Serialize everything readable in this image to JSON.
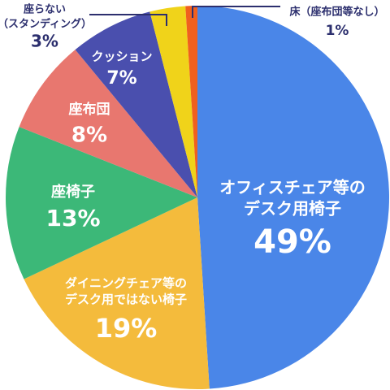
{
  "chart_data": {
    "type": "pie",
    "categories": [
      [
        "オフィスチェア等の",
        "デスク用椅子"
      ],
      [
        "ダイニングチェア等の",
        "デスク用ではない椅子"
      ],
      [
        "座椅子"
      ],
      [
        "座布団"
      ],
      [
        "クッション"
      ],
      [
        "座らない",
        "（スタンディング）"
      ],
      [
        "床（座布団等なし）"
      ]
    ],
    "values": [
      49,
      19,
      13,
      8,
      7,
      3,
      1
    ],
    "value_labels": [
      "49%",
      "19%",
      "13%",
      "8%",
      "7%",
      "3%",
      "1%"
    ],
    "colors": [
      "#4a86e8",
      "#f4bb3c",
      "#3cb878",
      "#e8776f",
      "#4a4fae",
      "#f0d31a",
      "#f0601e"
    ]
  }
}
